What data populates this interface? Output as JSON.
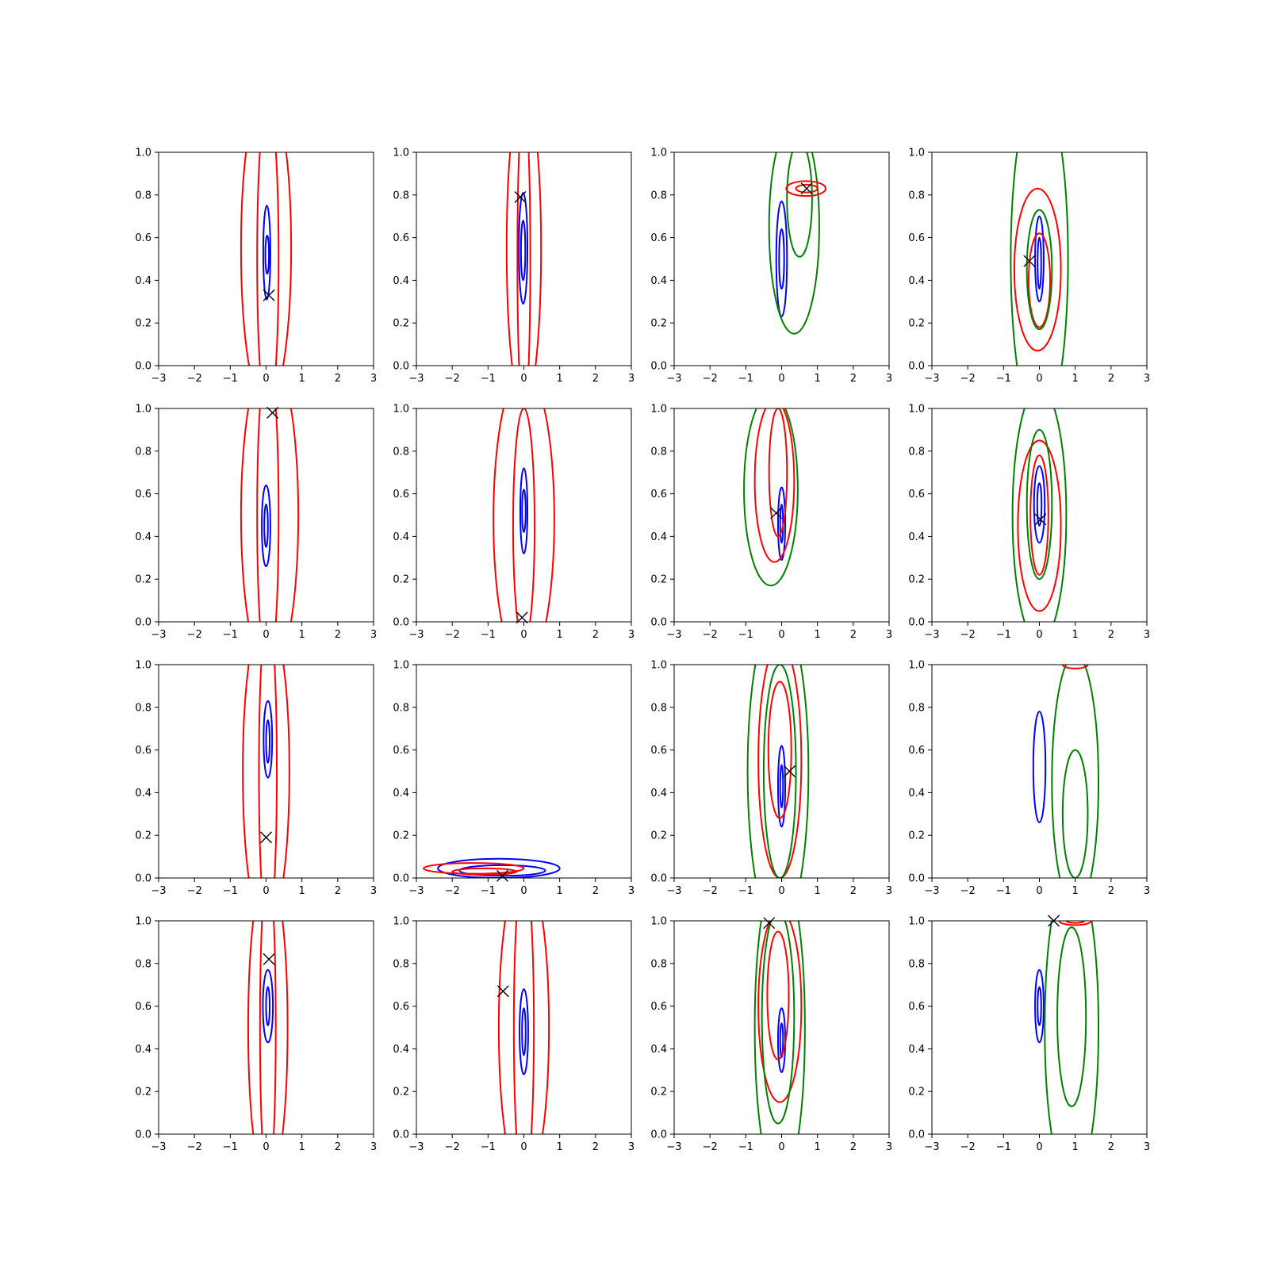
{
  "figure": {
    "rows": 4,
    "cols": 4,
    "colors": {
      "blue": "#0000ff",
      "red": "#ff0000",
      "green": "#008000",
      "marker": "#000000"
    }
  },
  "chart_data": [
    {
      "type": "contour",
      "row": 0,
      "col": 0,
      "xlim": [
        -3,
        3
      ],
      "ylim": [
        0,
        1
      ],
      "xticks": [
        "−3",
        "−2",
        "−1",
        "0",
        "1",
        "2",
        "3"
      ],
      "yticks": [
        "0.0",
        "0.2",
        "0.4",
        "0.6",
        "0.8",
        "1.0"
      ],
      "contours": [
        {
          "color": "blue",
          "cx": 0.02,
          "cy": 0.53,
          "rx": 0.1,
          "ry": 0.22
        },
        {
          "color": "blue",
          "cx": 0.03,
          "cy": 0.52,
          "rx": 0.05,
          "ry": 0.09
        },
        {
          "color": "red",
          "cx": 0.0,
          "cy": 0.55,
          "rx": 0.7,
          "ry": 0.75
        },
        {
          "color": "red",
          "cx": 0.05,
          "cy": 0.5,
          "rx": 0.3,
          "ry": 0.75
        }
      ],
      "marker": {
        "x": 0.08,
        "y": 0.33
      }
    },
    {
      "type": "contour",
      "row": 0,
      "col": 1,
      "xlim": [
        -3,
        3
      ],
      "ylim": [
        0,
        1
      ],
      "xticks": [
        "−3",
        "−2",
        "−1",
        "0",
        "1",
        "2",
        "3"
      ],
      "yticks": [
        "0.0",
        "0.2",
        "0.4",
        "0.6",
        "0.8",
        "1.0"
      ],
      "contours": [
        {
          "color": "blue",
          "cx": -0.02,
          "cy": 0.55,
          "rx": 0.12,
          "ry": 0.26
        },
        {
          "color": "blue",
          "cx": -0.02,
          "cy": 0.54,
          "rx": 0.06,
          "ry": 0.14
        },
        {
          "color": "red",
          "cx": 0.0,
          "cy": 0.55,
          "rx": 0.48,
          "ry": 0.75
        },
        {
          "color": "red",
          "cx": 0.0,
          "cy": 0.5,
          "rx": 0.18,
          "ry": 0.75
        }
      ],
      "marker": {
        "x": -0.1,
        "y": 0.79
      }
    },
    {
      "type": "contour",
      "row": 0,
      "col": 2,
      "xlim": [
        -3,
        3
      ],
      "ylim": [
        0,
        1
      ],
      "xticks": [
        "−3",
        "−2",
        "−1",
        "0",
        "1",
        "2",
        "3"
      ],
      "yticks": [
        "0.0",
        "0.2",
        "0.4",
        "0.6",
        "0.8",
        "1.0"
      ],
      "contours": [
        {
          "color": "blue",
          "cx": 0.0,
          "cy": 0.5,
          "rx": 0.15,
          "ry": 0.27
        },
        {
          "color": "blue",
          "cx": 0.0,
          "cy": 0.5,
          "rx": 0.07,
          "ry": 0.14
        },
        {
          "color": "green",
          "cx": 0.35,
          "cy": 0.65,
          "rx": 0.7,
          "ry": 0.5
        },
        {
          "color": "green",
          "cx": 0.5,
          "cy": 0.78,
          "rx": 0.35,
          "ry": 0.27
        },
        {
          "color": "red",
          "cx": 0.68,
          "cy": 0.83,
          "rx": 0.55,
          "ry": 0.035
        },
        {
          "color": "red",
          "cx": 0.7,
          "cy": 0.83,
          "rx": 0.3,
          "ry": 0.018
        }
      ],
      "marker": {
        "x": 0.7,
        "y": 0.83
      }
    },
    {
      "type": "contour",
      "row": 0,
      "col": 3,
      "xlim": [
        -3,
        3
      ],
      "ylim": [
        0,
        1
      ],
      "xticks": [
        "−3",
        "−2",
        "−1",
        "0",
        "1",
        "2",
        "3"
      ],
      "yticks": [
        "0.0",
        "0.2",
        "0.4",
        "0.6",
        "0.8",
        "1.0"
      ],
      "contours": [
        {
          "color": "blue",
          "cx": 0.0,
          "cy": 0.5,
          "rx": 0.12,
          "ry": 0.2
        },
        {
          "color": "blue",
          "cx": 0.0,
          "cy": 0.48,
          "rx": 0.05,
          "ry": 0.12
        },
        {
          "color": "red",
          "cx": -0.05,
          "cy": 0.45,
          "rx": 0.65,
          "ry": 0.38
        },
        {
          "color": "red",
          "cx": 0.0,
          "cy": 0.4,
          "rx": 0.3,
          "ry": 0.22
        },
        {
          "color": "green",
          "cx": 0.0,
          "cy": 0.5,
          "rx": 0.8,
          "ry": 0.8
        },
        {
          "color": "green",
          "cx": 0.0,
          "cy": 0.45,
          "rx": 0.35,
          "ry": 0.28
        }
      ],
      "marker": {
        "x": -0.28,
        "y": 0.49
      }
    },
    {
      "type": "contour",
      "row": 1,
      "col": 0,
      "xlim": [
        -3,
        3
      ],
      "ylim": [
        0,
        1
      ],
      "xticks": [
        "−3",
        "−2",
        "−1",
        "0",
        "1",
        "2",
        "3"
      ],
      "yticks": [
        "0.0",
        "0.2",
        "0.4",
        "0.6",
        "0.8",
        "1.0"
      ],
      "contours": [
        {
          "color": "blue",
          "cx": 0.0,
          "cy": 0.45,
          "rx": 0.12,
          "ry": 0.19
        },
        {
          "color": "blue",
          "cx": 0.0,
          "cy": 0.45,
          "rx": 0.05,
          "ry": 0.1
        },
        {
          "color": "red",
          "cx": 0.1,
          "cy": 0.5,
          "rx": 0.8,
          "ry": 0.75
        },
        {
          "color": "red",
          "cx": 0.05,
          "cy": 0.5,
          "rx": 0.3,
          "ry": 0.75
        }
      ],
      "marker": {
        "x": 0.18,
        "y": 0.98
      }
    },
    {
      "type": "contour",
      "row": 1,
      "col": 1,
      "xlim": [
        -3,
        3
      ],
      "ylim": [
        0,
        1
      ],
      "xticks": [
        "−3",
        "−2",
        "−1",
        "0",
        "1",
        "2",
        "3"
      ],
      "yticks": [
        "0.0",
        "0.2",
        "0.4",
        "0.6",
        "0.8",
        "1.0"
      ],
      "contours": [
        {
          "color": "blue",
          "cx": 0.0,
          "cy": 0.52,
          "rx": 0.1,
          "ry": 0.2
        },
        {
          "color": "blue",
          "cx": 0.0,
          "cy": 0.52,
          "rx": 0.05,
          "ry": 0.1
        },
        {
          "color": "red",
          "cx": 0.0,
          "cy": 0.48,
          "rx": 0.85,
          "ry": 0.7
        },
        {
          "color": "red",
          "cx": 0.0,
          "cy": 0.45,
          "rx": 0.3,
          "ry": 0.55
        }
      ],
      "marker": {
        "x": -0.05,
        "y": 0.02
      }
    },
    {
      "type": "contour",
      "row": 1,
      "col": 2,
      "xlim": [
        -3,
        3
      ],
      "ylim": [
        0,
        1
      ],
      "xticks": [
        "−3",
        "−2",
        "−1",
        "0",
        "1",
        "2",
        "3"
      ],
      "yticks": [
        "0.0",
        "0.2",
        "0.4",
        "0.6",
        "0.8",
        "1.0"
      ],
      "contours": [
        {
          "color": "blue",
          "cx": 0.0,
          "cy": 0.46,
          "rx": 0.1,
          "ry": 0.17
        },
        {
          "color": "blue",
          "cx": 0.0,
          "cy": 0.46,
          "rx": 0.04,
          "ry": 0.09
        },
        {
          "color": "red",
          "cx": -0.2,
          "cy": 0.66,
          "rx": 0.55,
          "ry": 0.38
        },
        {
          "color": "red",
          "cx": -0.1,
          "cy": 0.7,
          "rx": 0.25,
          "ry": 0.3
        },
        {
          "color": "green",
          "cx": -0.3,
          "cy": 0.62,
          "rx": 0.75,
          "ry": 0.45
        }
      ],
      "marker": {
        "x": -0.15,
        "y": 0.51
      }
    },
    {
      "type": "contour",
      "row": 1,
      "col": 3,
      "xlim": [
        -3,
        3
      ],
      "ylim": [
        0,
        1
      ],
      "xticks": [
        "−3",
        "−2",
        "−1",
        "0",
        "1",
        "2",
        "3"
      ],
      "yticks": [
        "0.0",
        "0.2",
        "0.4",
        "0.6",
        "0.8",
        "1.0"
      ],
      "contours": [
        {
          "color": "blue",
          "cx": 0.0,
          "cy": 0.55,
          "rx": 0.15,
          "ry": 0.18
        },
        {
          "color": "blue",
          "cx": 0.0,
          "cy": 0.55,
          "rx": 0.06,
          "ry": 0.1
        },
        {
          "color": "red",
          "cx": 0.0,
          "cy": 0.45,
          "rx": 0.6,
          "ry": 0.4
        },
        {
          "color": "red",
          "cx": 0.0,
          "cy": 0.5,
          "rx": 0.25,
          "ry": 0.28
        },
        {
          "color": "green",
          "cx": 0.0,
          "cy": 0.5,
          "rx": 0.75,
          "ry": 0.6
        },
        {
          "color": "green",
          "cx": 0.0,
          "cy": 0.55,
          "rx": 0.35,
          "ry": 0.35
        }
      ],
      "marker": {
        "x": 0.03,
        "y": 0.48
      }
    },
    {
      "type": "contour",
      "row": 2,
      "col": 0,
      "xlim": [
        -3,
        3
      ],
      "ylim": [
        0,
        1
      ],
      "xticks": [
        "−3",
        "−2",
        "−1",
        "0",
        "1",
        "2",
        "3"
      ],
      "yticks": [
        "0.0",
        "0.2",
        "0.4",
        "0.6",
        "0.8",
        "1.0"
      ],
      "contours": [
        {
          "color": "blue",
          "cx": 0.05,
          "cy": 0.65,
          "rx": 0.12,
          "ry": 0.18
        },
        {
          "color": "blue",
          "cx": 0.05,
          "cy": 0.64,
          "rx": 0.05,
          "ry": 0.1
        },
        {
          "color": "red",
          "cx": 0.0,
          "cy": 0.5,
          "rx": 0.65,
          "ry": 0.75
        },
        {
          "color": "red",
          "cx": 0.05,
          "cy": 0.5,
          "rx": 0.25,
          "ry": 0.75
        }
      ],
      "marker": {
        "x": 0.0,
        "y": 0.19
      }
    },
    {
      "type": "contour",
      "row": 2,
      "col": 1,
      "xlim": [
        -3,
        3
      ],
      "ylim": [
        0,
        1
      ],
      "xticks": [
        "−3",
        "−2",
        "−1",
        "0",
        "1",
        "2",
        "3"
      ],
      "yticks": [
        "0.0",
        "0.2",
        "0.4",
        "0.6",
        "0.8",
        "1.0"
      ],
      "contours": [
        {
          "color": "blue",
          "cx": -0.7,
          "cy": 0.045,
          "rx": 1.7,
          "ry": 0.045
        },
        {
          "color": "blue",
          "cx": -0.6,
          "cy": 0.035,
          "rx": 1.2,
          "ry": 0.025
        },
        {
          "color": "red",
          "cx": -1.4,
          "cy": 0.045,
          "rx": 1.4,
          "ry": 0.025
        },
        {
          "color": "red",
          "cx": -1.1,
          "cy": 0.03,
          "rx": 0.9,
          "ry": 0.015
        }
      ],
      "marker": {
        "x": -0.6,
        "y": 0.01
      }
    },
    {
      "type": "contour",
      "row": 2,
      "col": 2,
      "xlim": [
        -3,
        3
      ],
      "ylim": [
        0,
        1
      ],
      "xticks": [
        "−3",
        "−2",
        "−1",
        "0",
        "1",
        "2",
        "3"
      ],
      "yticks": [
        "0.0",
        "0.2",
        "0.4",
        "0.6",
        "0.8",
        "1.0"
      ],
      "contours": [
        {
          "color": "blue",
          "cx": 0.0,
          "cy": 0.43,
          "rx": 0.1,
          "ry": 0.19
        },
        {
          "color": "blue",
          "cx": 0.0,
          "cy": 0.43,
          "rx": 0.04,
          "ry": 0.1
        },
        {
          "color": "red",
          "cx": -0.05,
          "cy": 0.55,
          "rx": 0.6,
          "ry": 0.55
        },
        {
          "color": "red",
          "cx": -0.05,
          "cy": 0.6,
          "rx": 0.32,
          "ry": 0.32
        },
        {
          "color": "green",
          "cx": -0.1,
          "cy": 0.5,
          "rx": 0.85,
          "ry": 0.75
        },
        {
          "color": "green",
          "cx": -0.05,
          "cy": 0.5,
          "rx": 0.45,
          "ry": 0.5
        }
      ],
      "marker": {
        "x": 0.22,
        "y": 0.5
      }
    },
    {
      "type": "contour",
      "row": 2,
      "col": 3,
      "xlim": [
        -3,
        3
      ],
      "ylim": [
        0,
        1
      ],
      "xticks": [
        "−3",
        "−2",
        "−1",
        "0",
        "1",
        "2",
        "3"
      ],
      "yticks": [
        "0.0",
        "0.2",
        "0.4",
        "0.6",
        "0.8",
        "1.0"
      ],
      "contours": [
        {
          "color": "blue",
          "cx": 0.0,
          "cy": 0.52,
          "rx": 0.17,
          "ry": 0.26
        },
        {
          "color": "green",
          "cx": 1.0,
          "cy": 0.45,
          "rx": 0.65,
          "ry": 0.6
        },
        {
          "color": "green",
          "cx": 1.0,
          "cy": 0.3,
          "rx": 0.35,
          "ry": 0.3
        },
        {
          "color": "red",
          "cx": 1.0,
          "cy": 1.0,
          "rx": 0.35,
          "ry": 0.018
        }
      ],
      "marker": null
    },
    {
      "type": "contour",
      "row": 3,
      "col": 0,
      "xlim": [
        -3,
        3
      ],
      "ylim": [
        0,
        1
      ],
      "xticks": [
        "−3",
        "−2",
        "−1",
        "0",
        "1",
        "2",
        "3"
      ],
      "yticks": [
        "0.0",
        "0.2",
        "0.4",
        "0.6",
        "0.8",
        "1.0"
      ],
      "contours": [
        {
          "color": "blue",
          "cx": 0.05,
          "cy": 0.6,
          "rx": 0.14,
          "ry": 0.17
        },
        {
          "color": "blue",
          "cx": 0.05,
          "cy": 0.6,
          "rx": 0.05,
          "ry": 0.09
        },
        {
          "color": "red",
          "cx": 0.05,
          "cy": 0.5,
          "rx": 0.55,
          "ry": 0.75
        },
        {
          "color": "red",
          "cx": 0.05,
          "cy": 0.5,
          "rx": 0.22,
          "ry": 0.75
        }
      ],
      "marker": {
        "x": 0.08,
        "y": 0.82
      }
    },
    {
      "type": "contour",
      "row": 3,
      "col": 1,
      "xlim": [
        -3,
        3
      ],
      "ylim": [
        0,
        1
      ],
      "xticks": [
        "−3",
        "−2",
        "−1",
        "0",
        "1",
        "2",
        "3"
      ],
      "yticks": [
        "0.0",
        "0.2",
        "0.4",
        "0.6",
        "0.8",
        "1.0"
      ],
      "contours": [
        {
          "color": "blue",
          "cx": 0.0,
          "cy": 0.48,
          "rx": 0.12,
          "ry": 0.2
        },
        {
          "color": "blue",
          "cx": 0.0,
          "cy": 0.48,
          "rx": 0.05,
          "ry": 0.11
        },
        {
          "color": "red",
          "cx": 0.0,
          "cy": 0.5,
          "rx": 0.7,
          "ry": 0.75
        },
        {
          "color": "red",
          "cx": 0.0,
          "cy": 0.5,
          "rx": 0.28,
          "ry": 0.75
        }
      ],
      "marker": {
        "x": -0.58,
        "y": 0.67
      }
    },
    {
      "type": "contour",
      "row": 3,
      "col": 2,
      "xlim": [
        -3,
        3
      ],
      "ylim": [
        0,
        1
      ],
      "xticks": [
        "−3",
        "−2",
        "−1",
        "0",
        "1",
        "2",
        "3"
      ],
      "yticks": [
        "0.0",
        "0.2",
        "0.4",
        "0.6",
        "0.8",
        "1.0"
      ],
      "contours": [
        {
          "color": "blue",
          "cx": 0.0,
          "cy": 0.44,
          "rx": 0.1,
          "ry": 0.15
        },
        {
          "color": "blue",
          "cx": 0.0,
          "cy": 0.44,
          "rx": 0.04,
          "ry": 0.08
        },
        {
          "color": "red",
          "cx": -0.05,
          "cy": 0.6,
          "rx": 0.6,
          "ry": 0.45
        },
        {
          "color": "red",
          "cx": -0.1,
          "cy": 0.65,
          "rx": 0.3,
          "ry": 0.3
        },
        {
          "color": "green",
          "cx": -0.05,
          "cy": 0.5,
          "rx": 0.7,
          "ry": 0.75
        },
        {
          "color": "green",
          "cx": -0.1,
          "cy": 0.55,
          "rx": 0.45,
          "ry": 0.5
        }
      ],
      "marker": {
        "x": -0.35,
        "y": 0.99
      }
    },
    {
      "type": "contour",
      "row": 3,
      "col": 3,
      "xlim": [
        -3,
        3
      ],
      "ylim": [
        0,
        1
      ],
      "xticks": [
        "−3",
        "−2",
        "−1",
        "0",
        "1",
        "2",
        "3"
      ],
      "yticks": [
        "0.0",
        "0.2",
        "0.4",
        "0.6",
        "0.8",
        "1.0"
      ],
      "contours": [
        {
          "color": "blue",
          "cx": 0.0,
          "cy": 0.6,
          "rx": 0.12,
          "ry": 0.17
        },
        {
          "color": "blue",
          "cx": 0.0,
          "cy": 0.6,
          "rx": 0.05,
          "ry": 0.09
        },
        {
          "color": "green",
          "cx": 0.9,
          "cy": 0.5,
          "rx": 0.75,
          "ry": 0.75
        },
        {
          "color": "green",
          "cx": 0.9,
          "cy": 0.55,
          "rx": 0.4,
          "ry": 0.42
        },
        {
          "color": "red",
          "cx": 1.0,
          "cy": 1.0,
          "rx": 0.45,
          "ry": 0.02
        },
        {
          "color": "red",
          "cx": 1.0,
          "cy": 1.0,
          "rx": 0.25,
          "ry": 0.01
        }
      ],
      "marker": {
        "x": 0.4,
        "y": 1.0
      }
    }
  ]
}
